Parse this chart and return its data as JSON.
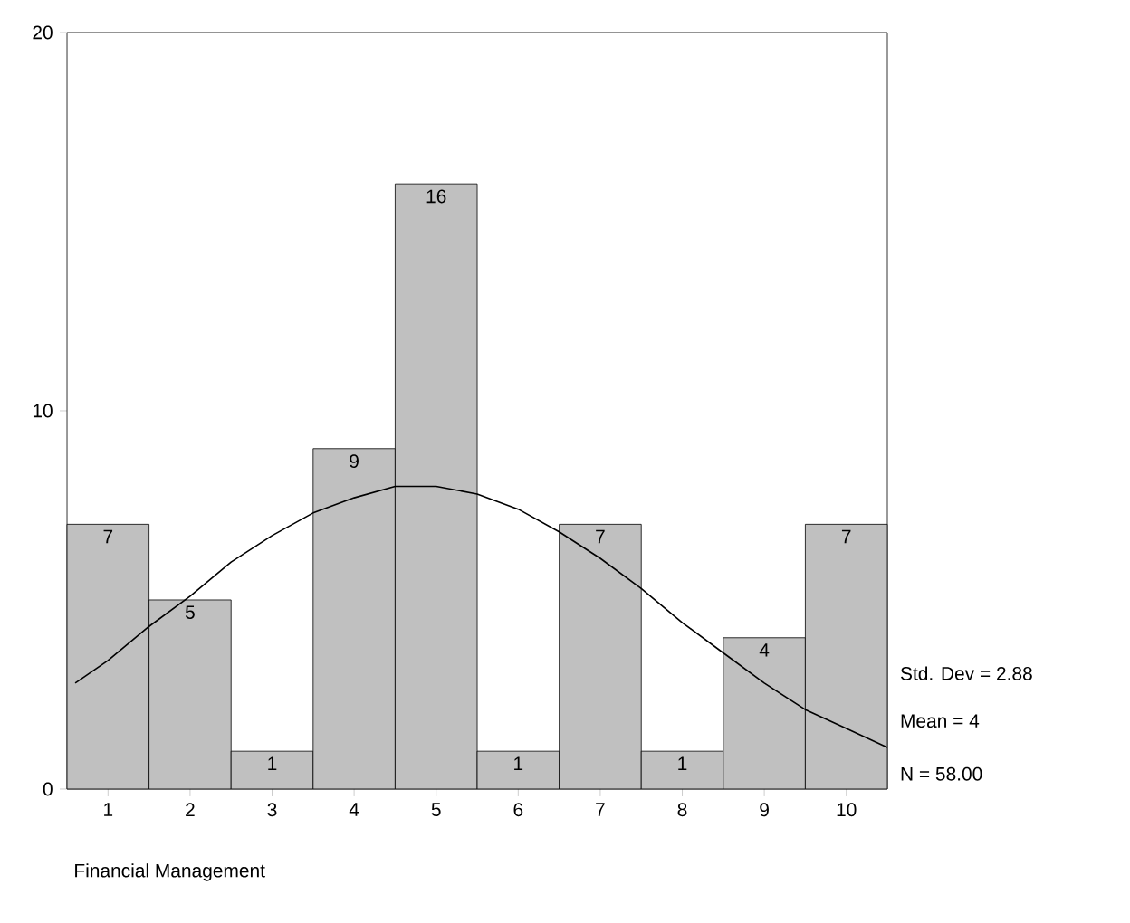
{
  "chart_data": {
    "type": "histogram",
    "xlabel": "Financial Management",
    "bins": [
      0.5,
      1.5,
      2.5,
      3.5,
      4.5,
      5.5,
      6.5,
      7.5,
      8.5,
      9.5,
      10.5
    ],
    "values": [
      7,
      5,
      1,
      9,
      16,
      1,
      7,
      1,
      4,
      7
    ],
    "color": "#c0c0c0",
    "value_labels": [
      "7",
      "5",
      "1",
      "9",
      "16",
      "1",
      "7",
      "1",
      "4",
      "7"
    ],
    "xlim": [
      0.5,
      10.5
    ],
    "xticks": [
      1,
      2,
      3,
      4,
      5,
      6,
      7,
      8,
      9,
      10
    ],
    "ylim": [
      0,
      20
    ],
    "yticks": [
      0,
      10,
      20
    ],
    "series": [
      {
        "type": "line",
        "color": "#000000",
        "x": [
          0.6,
          1,
          1.5,
          2,
          2.5,
          3,
          3.5,
          4,
          4.5,
          5,
          5.5,
          6,
          6.5,
          7,
          7.5,
          8,
          8.5,
          9,
          9.5,
          10,
          10.5
        ],
        "values": [
          2.8,
          3.4,
          4.3,
          5.1,
          6.0,
          6.7,
          7.3,
          7.7,
          8.0,
          8.0,
          7.8,
          7.4,
          6.8,
          6.1,
          5.3,
          4.4,
          3.6,
          2.8,
          2.1,
          1.6,
          1.1
        ]
      }
    ],
    "annotations": [
      "Std. Dev = 2.88",
      "Mean = 4",
      "N = 58.00"
    ]
  }
}
